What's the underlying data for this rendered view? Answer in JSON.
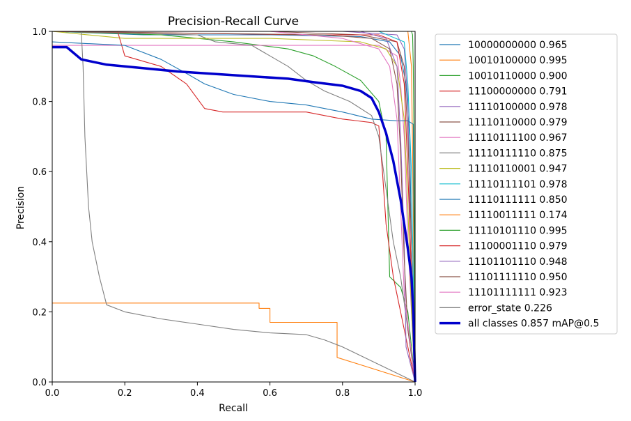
{
  "chart_data": {
    "type": "line",
    "title": "Precision-Recall Curve",
    "xlabel": "Recall",
    "ylabel": "Precision",
    "xlim": [
      0.0,
      1.0
    ],
    "ylim": [
      0.0,
      1.0
    ],
    "xticks": [
      "0.0",
      "0.2",
      "0.4",
      "0.6",
      "0.8",
      "1.0"
    ],
    "yticks": [
      "0.0",
      "0.2",
      "0.4",
      "0.6",
      "0.8",
      "1.0"
    ],
    "grid": false,
    "legend_position": "outside right",
    "series": [
      {
        "name": "10000000000 0.965",
        "color": "#1f77b4",
        "width": "thin",
        "points": [
          [
            0,
            1
          ],
          [
            0.25,
            0.99
          ],
          [
            0.6,
            0.99
          ],
          [
            0.85,
            0.985
          ],
          [
            0.93,
            0.97
          ],
          [
            0.96,
            0.93
          ],
          [
            0.975,
            0.85
          ],
          [
            0.985,
            0.7
          ],
          [
            0.99,
            0.4
          ],
          [
            1.0,
            0.0
          ]
        ]
      },
      {
        "name": "10010100000 0.995",
        "color": "#ff7f0e",
        "width": "thin",
        "points": [
          [
            0,
            1
          ],
          [
            0.9,
            1
          ],
          [
            0.98,
            1
          ],
          [
            0.99,
            0.9
          ],
          [
            0.995,
            0.5
          ],
          [
            1.0,
            0.0
          ]
        ]
      },
      {
        "name": "10010110000 0.900",
        "color": "#2ca02c",
        "width": "thin",
        "points": [
          [
            0,
            1
          ],
          [
            0.3,
            0.99
          ],
          [
            0.5,
            0.97
          ],
          [
            0.65,
            0.95
          ],
          [
            0.72,
            0.93
          ],
          [
            0.78,
            0.9
          ],
          [
            0.85,
            0.86
          ],
          [
            0.9,
            0.8
          ],
          [
            0.92,
            0.7
          ],
          [
            0.925,
            0.5
          ],
          [
            0.93,
            0.3
          ],
          [
            0.96,
            0.27
          ],
          [
            0.98,
            0.2
          ],
          [
            1.0,
            0.0
          ]
        ]
      },
      {
        "name": "11100000000 0.791",
        "color": "#d62728",
        "width": "thin",
        "points": [
          [
            0,
            1
          ],
          [
            0.18,
            1
          ],
          [
            0.2,
            0.93
          ],
          [
            0.3,
            0.9
          ],
          [
            0.37,
            0.85
          ],
          [
            0.42,
            0.78
          ],
          [
            0.47,
            0.77
          ],
          [
            0.55,
            0.77
          ],
          [
            0.7,
            0.77
          ],
          [
            0.8,
            0.75
          ],
          [
            0.88,
            0.74
          ],
          [
            0.9,
            0.73
          ],
          [
            0.91,
            0.6
          ],
          [
            0.92,
            0.45
          ],
          [
            0.94,
            0.3
          ],
          [
            0.97,
            0.15
          ],
          [
            1.0,
            0.0
          ]
        ]
      },
      {
        "name": "11110100000 0.978",
        "color": "#9467bd",
        "width": "thin",
        "points": [
          [
            0,
            1
          ],
          [
            0.8,
            1
          ],
          [
            0.95,
            0.99
          ],
          [
            0.97,
            0.95
          ],
          [
            0.98,
            0.8
          ],
          [
            0.985,
            0.5
          ],
          [
            0.99,
            0.25
          ],
          [
            1.0,
            0.0
          ]
        ]
      },
      {
        "name": "11110110000 0.979",
        "color": "#8c564b",
        "width": "thin",
        "points": [
          [
            0,
            1
          ],
          [
            0.6,
            1
          ],
          [
            0.85,
            0.99
          ],
          [
            0.95,
            0.97
          ],
          [
            0.97,
            0.9
          ],
          [
            0.98,
            0.7
          ],
          [
            0.99,
            0.4
          ],
          [
            1.0,
            0.0
          ]
        ]
      },
      {
        "name": "11110111100 0.967",
        "color": "#e377c2",
        "width": "thin",
        "points": [
          [
            0,
            0.96
          ],
          [
            0.9,
            0.96
          ],
          [
            0.95,
            0.93
          ],
          [
            0.96,
            0.85
          ],
          [
            0.97,
            0.7
          ],
          [
            0.98,
            0.4
          ],
          [
            0.99,
            0.2
          ],
          [
            1.0,
            0.0
          ]
        ]
      },
      {
        "name": "11110111110 0.875",
        "color": "#7f7f7f",
        "width": "thin",
        "points": [
          [
            0,
            1
          ],
          [
            0.4,
            0.99
          ],
          [
            0.45,
            0.97
          ],
          [
            0.55,
            0.96
          ],
          [
            0.6,
            0.93
          ],
          [
            0.65,
            0.9
          ],
          [
            0.7,
            0.86
          ],
          [
            0.75,
            0.83
          ],
          [
            0.82,
            0.8
          ],
          [
            0.88,
            0.76
          ],
          [
            0.9,
            0.7
          ],
          [
            0.92,
            0.55
          ],
          [
            0.94,
            0.4
          ],
          [
            0.96,
            0.3
          ],
          [
            0.98,
            0.15
          ],
          [
            1.0,
            0.0
          ]
        ]
      },
      {
        "name": "11110110001 0.947",
        "color": "#bcbd22",
        "width": "thin",
        "points": [
          [
            0,
            1
          ],
          [
            0.2,
            0.98
          ],
          [
            0.6,
            0.98
          ],
          [
            0.85,
            0.97
          ],
          [
            0.92,
            0.95
          ],
          [
            0.95,
            0.9
          ],
          [
            0.97,
            0.75
          ],
          [
            0.98,
            0.5
          ],
          [
            0.99,
            0.2
          ],
          [
            1.0,
            0.0
          ]
        ]
      },
      {
        "name": "11110111101 0.978",
        "color": "#17becf",
        "width": "thin",
        "points": [
          [
            0,
            1
          ],
          [
            0.9,
            1
          ],
          [
            0.97,
            0.97
          ],
          [
            0.98,
            0.85
          ],
          [
            0.99,
            0.6
          ],
          [
            0.995,
            0.3
          ],
          [
            1.0,
            0.0
          ]
        ]
      },
      {
        "name": "11110111111 0.850",
        "color": "#1f77b4",
        "width": "thin",
        "points": [
          [
            0,
            0.97
          ],
          [
            0.2,
            0.96
          ],
          [
            0.3,
            0.92
          ],
          [
            0.37,
            0.88
          ],
          [
            0.42,
            0.85
          ],
          [
            0.5,
            0.82
          ],
          [
            0.6,
            0.8
          ],
          [
            0.7,
            0.79
          ],
          [
            0.8,
            0.77
          ],
          [
            0.88,
            0.75
          ],
          [
            0.95,
            0.745
          ],
          [
            0.98,
            0.745
          ],
          [
            0.995,
            0.735
          ],
          [
            1.0,
            0.0
          ]
        ]
      },
      {
        "name": "11110011111 0.174",
        "color": "#ff7f0e",
        "width": "thin",
        "points": [
          [
            0,
            0.225
          ],
          [
            0.57,
            0.225
          ],
          [
            0.57,
            0.21
          ],
          [
            0.6,
            0.21
          ],
          [
            0.6,
            0.17
          ],
          [
            0.785,
            0.17
          ],
          [
            0.785,
            0.07
          ],
          [
            1.0,
            0.0
          ]
        ]
      },
      {
        "name": "11110101110 0.995",
        "color": "#2ca02c",
        "width": "thin",
        "points": [
          [
            0,
            1
          ],
          [
            0.99,
            1
          ],
          [
            0.993,
            0.99
          ],
          [
            0.995,
            0.9
          ],
          [
            0.997,
            0.7
          ],
          [
            1.0,
            0.0
          ]
        ]
      },
      {
        "name": "11100001110 0.979",
        "color": "#d62728",
        "width": "thin",
        "points": [
          [
            0,
            1
          ],
          [
            0.7,
            0.99
          ],
          [
            0.9,
            0.99
          ],
          [
            0.95,
            0.97
          ],
          [
            0.97,
            0.85
          ],
          [
            0.98,
            0.6
          ],
          [
            0.99,
            0.3
          ],
          [
            1.0,
            0.0
          ]
        ]
      },
      {
        "name": "11101101110 0.948",
        "color": "#9467bd",
        "width": "thin",
        "points": [
          [
            0,
            1
          ],
          [
            0.85,
            1
          ],
          [
            0.92,
            0.98
          ],
          [
            0.95,
            0.9
          ],
          [
            0.96,
            0.7
          ],
          [
            0.97,
            0.4
          ],
          [
            0.975,
            0.1
          ],
          [
            1.0,
            0.0
          ]
        ]
      },
      {
        "name": "11101111110 0.950",
        "color": "#8c564b",
        "width": "thin",
        "points": [
          [
            0,
            1
          ],
          [
            0.75,
            0.99
          ],
          [
            0.88,
            0.98
          ],
          [
            0.93,
            0.95
          ],
          [
            0.95,
            0.85
          ],
          [
            0.96,
            0.65
          ],
          [
            0.97,
            0.35
          ],
          [
            0.98,
            0.15
          ],
          [
            1.0,
            0.0
          ]
        ]
      },
      {
        "name": "11101111111 0.923",
        "color": "#e377c2",
        "width": "thin",
        "points": [
          [
            0,
            1
          ],
          [
            0.6,
            1
          ],
          [
            0.8,
            0.98
          ],
          [
            0.9,
            0.95
          ],
          [
            0.93,
            0.9
          ],
          [
            0.95,
            0.75
          ],
          [
            0.96,
            0.5
          ],
          [
            0.97,
            0.25
          ],
          [
            1.0,
            0.0
          ]
        ]
      },
      {
        "name": "error_state 0.226",
        "color": "#7f7f7f",
        "width": "thin",
        "points": [
          [
            0,
            1
          ],
          [
            0.08,
            1
          ],
          [
            0.085,
            0.9
          ],
          [
            0.09,
            0.7
          ],
          [
            0.1,
            0.5
          ],
          [
            0.11,
            0.4
          ],
          [
            0.13,
            0.3
          ],
          [
            0.15,
            0.22
          ],
          [
            0.2,
            0.2
          ],
          [
            0.3,
            0.18
          ],
          [
            0.4,
            0.165
          ],
          [
            0.5,
            0.15
          ],
          [
            0.6,
            0.14
          ],
          [
            0.7,
            0.135
          ],
          [
            0.75,
            0.12
          ],
          [
            0.8,
            0.1
          ],
          [
            0.9,
            0.05
          ],
          [
            1.0,
            0.0
          ]
        ]
      },
      {
        "name": "all classes 0.857 mAP@0.5",
        "color": "#0000cc",
        "width": "thick",
        "points": [
          [
            0,
            0.955
          ],
          [
            0.04,
            0.955
          ],
          [
            0.08,
            0.92
          ],
          [
            0.15,
            0.905
          ],
          [
            0.25,
            0.895
          ],
          [
            0.35,
            0.885
          ],
          [
            0.5,
            0.875
          ],
          [
            0.65,
            0.865
          ],
          [
            0.72,
            0.855
          ],
          [
            0.8,
            0.845
          ],
          [
            0.85,
            0.83
          ],
          [
            0.88,
            0.81
          ],
          [
            0.9,
            0.77
          ],
          [
            0.92,
            0.71
          ],
          [
            0.94,
            0.63
          ],
          [
            0.96,
            0.52
          ],
          [
            0.97,
            0.45
          ],
          [
            0.98,
            0.38
          ],
          [
            0.99,
            0.3
          ],
          [
            0.995,
            0.2
          ],
          [
            1.0,
            0.0
          ]
        ]
      }
    ]
  }
}
